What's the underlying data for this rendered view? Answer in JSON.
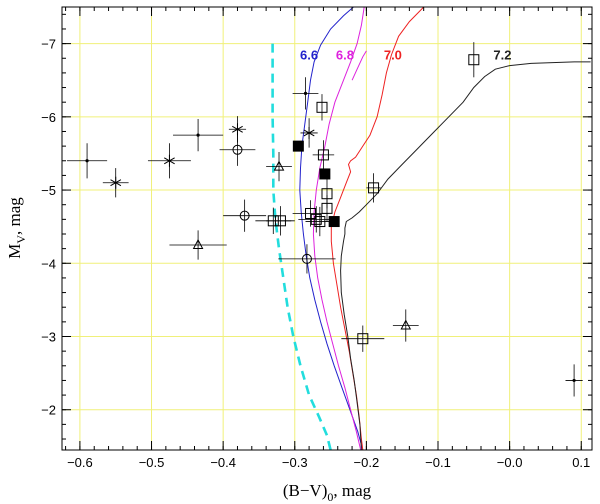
{
  "chart_data": {
    "type": "scatter",
    "title": "",
    "xlabel": "(B−V)",
    "xlabel_sub": "0",
    "xlabel_unit": ",  mag",
    "ylabel": "M",
    "ylabel_sub": "V",
    "ylabel_unit": ",  mag",
    "xlim": [
      -0.625,
      0.115
    ],
    "ylim": [
      -1.45,
      -7.5
    ],
    "y_inverted": true,
    "grid": true,
    "grid_color": "#f0f07a",
    "xticks": [
      -0.6,
      -0.5,
      -0.4,
      -0.3,
      -0.2,
      -0.1,
      0.0,
      0.1
    ],
    "xtick_labels": [
      "−0.6",
      "−0.5",
      "−0.4",
      "−0.3",
      "−0.2",
      "−0.1",
      "−0.0",
      "0.1"
    ],
    "yticks": [
      -7,
      -6,
      -5,
      -4,
      -3,
      -2
    ],
    "ytick_labels": [
      "−7",
      "−6",
      "−5",
      "−4",
      "−3",
      "−2"
    ],
    "isochrones": [
      {
        "name": "6.6",
        "label": "6.6",
        "color": "#2222cc",
        "label_at": [
          -0.28,
          -6.85
        ],
        "points": [
          [
            -0.218,
            -7.5
          ],
          [
            -0.232,
            -7.38
          ],
          [
            -0.25,
            -7.2
          ],
          [
            -0.264,
            -6.98
          ],
          [
            -0.273,
            -6.75
          ],
          [
            -0.278,
            -6.5
          ],
          [
            -0.282,
            -6.2
          ],
          [
            -0.286,
            -5.9
          ],
          [
            -0.29,
            -5.6
          ],
          [
            -0.292,
            -5.3
          ],
          [
            -0.293,
            -5.0
          ],
          [
            -0.291,
            -4.7
          ],
          [
            -0.288,
            -4.4
          ],
          [
            -0.284,
            -4.1
          ],
          [
            -0.279,
            -3.8
          ],
          [
            -0.272,
            -3.5
          ],
          [
            -0.264,
            -3.2
          ],
          [
            -0.255,
            -2.9
          ],
          [
            -0.245,
            -2.6
          ],
          [
            -0.234,
            -2.3
          ],
          [
            -0.223,
            -2.0
          ],
          [
            -0.212,
            -1.7
          ],
          [
            -0.205,
            -1.45
          ]
        ]
      },
      {
        "name": "6.8",
        "label": "6.8",
        "color": "#dd22dd",
        "label_at": [
          -0.23,
          -6.85
        ],
        "points": [
          [
            -0.203,
            -7.5
          ],
          [
            -0.207,
            -7.25
          ],
          [
            -0.213,
            -7.0
          ],
          [
            -0.222,
            -6.75
          ],
          [
            -0.232,
            -6.5
          ],
          [
            -0.244,
            -6.2
          ],
          [
            -0.252,
            -5.9
          ],
          [
            -0.258,
            -5.6
          ],
          [
            -0.265,
            -5.3
          ],
          [
            -0.27,
            -5.0
          ],
          [
            -0.273,
            -4.7
          ],
          [
            -0.274,
            -4.4
          ],
          [
            -0.272,
            -4.1
          ],
          [
            -0.268,
            -3.8
          ],
          [
            -0.262,
            -3.5
          ],
          [
            -0.255,
            -3.2
          ],
          [
            -0.247,
            -2.9
          ],
          [
            -0.239,
            -2.6
          ],
          [
            -0.23,
            -2.3
          ],
          [
            -0.222,
            -2.0
          ],
          [
            -0.214,
            -1.7
          ],
          [
            -0.208,
            -1.45
          ]
        ]
      },
      {
        "name": "6.8b",
        "label": "",
        "color": "#dd22dd",
        "label_at": null,
        "points": [
          [
            -0.22,
            -6.5
          ],
          [
            -0.213,
            -6.65
          ],
          [
            -0.205,
            -6.82
          ],
          [
            -0.2,
            -6.9
          ]
        ]
      },
      {
        "name": "7.0",
        "label": "7.0",
        "color": "#ee2222",
        "label_at": [
          -0.163,
          -6.85
        ],
        "points": [
          [
            -0.12,
            -7.5
          ],
          [
            -0.128,
            -7.42
          ],
          [
            -0.14,
            -7.3
          ],
          [
            -0.155,
            -7.1
          ],
          [
            -0.165,
            -6.85
          ],
          [
            -0.172,
            -6.6
          ],
          [
            -0.178,
            -6.3
          ],
          [
            -0.185,
            -6.0
          ],
          [
            -0.195,
            -5.75
          ],
          [
            -0.205,
            -5.6
          ],
          [
            -0.215,
            -5.45
          ],
          [
            -0.222,
            -5.4
          ],
          [
            -0.225,
            -5.35
          ],
          [
            -0.222,
            -5.25
          ],
          [
            -0.228,
            -5.1
          ],
          [
            -0.236,
            -4.9
          ],
          [
            -0.244,
            -4.7
          ],
          [
            -0.249,
            -4.5
          ],
          [
            -0.249,
            -4.3
          ],
          [
            -0.246,
            -4.0
          ],
          [
            -0.241,
            -3.7
          ],
          [
            -0.236,
            -3.4
          ],
          [
            -0.23,
            -3.1
          ],
          [
            -0.224,
            -2.8
          ],
          [
            -0.219,
            -2.5
          ],
          [
            -0.214,
            -2.2
          ],
          [
            -0.21,
            -1.9
          ],
          [
            -0.207,
            -1.6
          ],
          [
            -0.205,
            -1.45
          ]
        ]
      },
      {
        "name": "7.2",
        "label": "7.2",
        "color": "#222222",
        "label_at": [
          -0.01,
          -6.85
        ],
        "points": [
          [
            0.113,
            -6.75
          ],
          [
            0.09,
            -6.75
          ],
          [
            0.06,
            -6.74
          ],
          [
            0.03,
            -6.73
          ],
          [
            0.0,
            -6.7
          ],
          [
            -0.02,
            -6.65
          ],
          [
            -0.035,
            -6.55
          ],
          [
            -0.05,
            -6.4
          ],
          [
            -0.065,
            -6.2
          ],
          [
            -0.085,
            -6.0
          ],
          [
            -0.105,
            -5.8
          ],
          [
            -0.125,
            -5.6
          ],
          [
            -0.15,
            -5.35
          ],
          [
            -0.17,
            -5.15
          ],
          [
            -0.185,
            -4.95
          ],
          [
            -0.2,
            -4.8
          ],
          [
            -0.21,
            -4.7
          ],
          [
            -0.22,
            -4.62
          ],
          [
            -0.228,
            -4.57
          ],
          [
            -0.23,
            -4.48
          ],
          [
            -0.23,
            -4.4
          ],
          [
            -0.232,
            -4.3
          ],
          [
            -0.235,
            -4.1
          ],
          [
            -0.236,
            -3.9
          ],
          [
            -0.235,
            -3.6
          ],
          [
            -0.231,
            -3.3
          ],
          [
            -0.226,
            -3.0
          ],
          [
            -0.222,
            -2.7
          ],
          [
            -0.217,
            -2.4
          ],
          [
            -0.213,
            -2.1
          ],
          [
            -0.209,
            -1.8
          ],
          [
            -0.207,
            -1.45
          ]
        ]
      }
    ],
    "zams": {
      "name": "ZAMS",
      "color": "#22dddd",
      "points": [
        [
          -0.331,
          -7.0
        ],
        [
          -0.331,
          -6.5
        ],
        [
          -0.331,
          -6.0
        ],
        [
          -0.33,
          -5.5
        ],
        [
          -0.33,
          -5.0
        ],
        [
          -0.327,
          -4.6
        ],
        [
          -0.322,
          -4.2
        ],
        [
          -0.316,
          -3.8
        ],
        [
          -0.31,
          -3.4
        ],
        [
          -0.302,
          -3.0
        ],
        [
          -0.292,
          -2.6
        ],
        [
          -0.28,
          -2.2
        ],
        [
          -0.266,
          -1.9
        ],
        [
          -0.255,
          -1.65
        ],
        [
          -0.25,
          -1.45
        ]
      ]
    },
    "stars": [
      {
        "x": -0.59,
        "y": -5.4,
        "sym": "dot",
        "ex": 0.028,
        "ey": 0.24
      },
      {
        "x": -0.55,
        "y": -5.1,
        "sym": "star",
        "ex": 0.018,
        "ey": 0.2
      },
      {
        "x": -0.475,
        "y": -5.4,
        "sym": "star",
        "ex": 0.03,
        "ey": 0.24
      },
      {
        "x": -0.435,
        "y": -5.75,
        "sym": "dot",
        "ex": 0.035,
        "ey": 0.22
      },
      {
        "x": -0.435,
        "y": -4.25,
        "sym": "triangle",
        "ex": 0.04,
        "ey": 0.2
      },
      {
        "x": -0.38,
        "y": -5.83,
        "sym": "star",
        "ex": 0.012,
        "ey": 0.18
      },
      {
        "x": -0.38,
        "y": -5.55,
        "sym": "circle",
        "ex": 0.025,
        "ey": 0.22
      },
      {
        "x": -0.37,
        "y": -4.65,
        "sym": "circle",
        "ex": 0.03,
        "ey": 0.22
      },
      {
        "x": -0.33,
        "y": -4.58,
        "sym": "square",
        "ex": 0.025,
        "ey": 0.18
      },
      {
        "x": -0.32,
        "y": -4.58,
        "sym": "square",
        "ex": 0.02,
        "ey": 0.2
      },
      {
        "x": -0.322,
        "y": -5.32,
        "sym": "triangle",
        "ex": 0.018,
        "ey": 0.2
      },
      {
        "x": -0.285,
        "y": -6.32,
        "sym": "dot",
        "ex": 0.018,
        "ey": 0.22
      },
      {
        "x": -0.28,
        "y": -5.78,
        "sym": "star",
        "ex": 0.012,
        "ey": 0.2
      },
      {
        "x": -0.295,
        "y": -5.6,
        "sym": "filled",
        "ex": 0.0,
        "ey": 0.0
      },
      {
        "x": -0.262,
        "y": -6.13,
        "sym": "square",
        "ex": 0.0,
        "ey": 0.18
      },
      {
        "x": -0.26,
        "y": -5.48,
        "sym": "square",
        "ex": 0.015,
        "ey": 0.2
      },
      {
        "x": -0.258,
        "y": -5.22,
        "sym": "filled",
        "ex": 0.0,
        "ey": 0.0
      },
      {
        "x": -0.255,
        "y": -4.95,
        "sym": "square",
        "ex": 0.0,
        "ey": 0.2
      },
      {
        "x": -0.255,
        "y": -4.75,
        "sym": "square",
        "ex": 0.0,
        "ey": 0.18
      },
      {
        "x": -0.278,
        "y": -4.68,
        "sym": "square",
        "ex": 0.025,
        "ey": 0.18
      },
      {
        "x": -0.27,
        "y": -4.6,
        "sym": "square",
        "ex": 0.025,
        "ey": 0.18
      },
      {
        "x": -0.265,
        "y": -4.57,
        "sym": "square",
        "ex": 0.02,
        "ey": 0.2
      },
      {
        "x": -0.245,
        "y": -4.57,
        "sym": "filled",
        "ex": 0.0,
        "ey": 0.0
      },
      {
        "x": -0.283,
        "y": -4.06,
        "sym": "circle",
        "ex": 0.04,
        "ey": 0.2
      },
      {
        "x": -0.19,
        "y": -5.03,
        "sym": "square",
        "ex": 0.01,
        "ey": 0.2
      },
      {
        "x": -0.205,
        "y": -2.97,
        "sym": "square",
        "ex": 0.03,
        "ey": 0.18
      },
      {
        "x": -0.145,
        "y": -3.15,
        "sym": "triangle",
        "ex": 0.018,
        "ey": 0.22
      },
      {
        "x": -0.05,
        "y": -6.78,
        "sym": "square",
        "ex": 0.0,
        "ey": 0.24
      },
      {
        "x": 0.09,
        "y": -2.4,
        "sym": "dot",
        "ex": 0.012,
        "ey": 0.22
      }
    ]
  }
}
